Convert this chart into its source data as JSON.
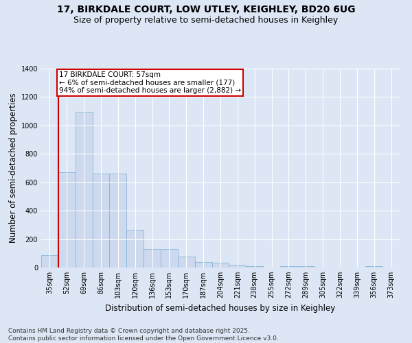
{
  "title_line1": "17, BIRKDALE COURT, LOW UTLEY, KEIGHLEY, BD20 6UG",
  "title_line2": "Size of property relative to semi-detached houses in Keighley",
  "xlabel": "Distribution of semi-detached houses by size in Keighley",
  "ylabel": "Number of semi-detached properties",
  "categories": [
    "35sqm",
    "52sqm",
    "69sqm",
    "86sqm",
    "103sqm",
    "120sqm",
    "136sqm",
    "153sqm",
    "170sqm",
    "187sqm",
    "204sqm",
    "221sqm",
    "238sqm",
    "255sqm",
    "272sqm",
    "289sqm",
    "305sqm",
    "322sqm",
    "339sqm",
    "356sqm",
    "373sqm"
  ],
  "values": [
    85,
    670,
    1095,
    660,
    660,
    265,
    130,
    130,
    75,
    40,
    35,
    20,
    10,
    0,
    10,
    10,
    0,
    0,
    0,
    10,
    0
  ],
  "bar_color": "#ccd9ee",
  "bar_edge_color": "#7bafd4",
  "vline_color": "#cc0000",
  "annotation_title": "17 BIRKDALE COURT: 57sqm",
  "annotation_line2": "← 6% of semi-detached houses are smaller (177)",
  "annotation_line3": "94% of semi-detached houses are larger (2,882) →",
  "annotation_box_color": "#cc0000",
  "annotation_bg": "#ffffff",
  "bg_color": "#dce6f5",
  "plot_bg": "#dce6f5",
  "ylim": [
    0,
    1400
  ],
  "yticks": [
    0,
    200,
    400,
    600,
    800,
    1000,
    1200,
    1400
  ],
  "footer_line1": "Contains HM Land Registry data © Crown copyright and database right 2025.",
  "footer_line2": "Contains public sector information licensed under the Open Government Licence v3.0.",
  "title_fontsize": 10,
  "subtitle_fontsize": 9,
  "axis_label_fontsize": 8.5,
  "tick_fontsize": 7,
  "annotation_fontsize": 7.5,
  "footer_fontsize": 6.5
}
